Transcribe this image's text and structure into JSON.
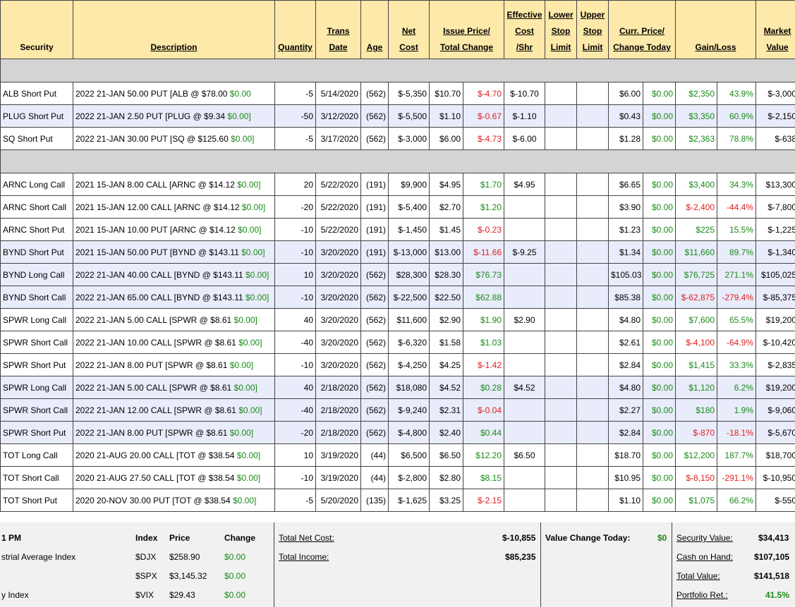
{
  "header": {
    "security": "Security",
    "description": "Description",
    "quantity": "Quantity",
    "trans_date_1": "Trans",
    "trans_date_2": "Date",
    "age": "Age",
    "net_cost_1": "Net",
    "net_cost_2": "Cost",
    "issue_1": "Issue Price/",
    "issue_2": "Total Change",
    "eff_1": "Effective",
    "eff_2": "Cost",
    "eff_3": "/Shr",
    "lower_1": "Lower",
    "lower_2": "Stop",
    "lower_3": "Limit",
    "upper_1": "Upper",
    "upper_2": "Stop",
    "upper_3": "Limit",
    "curr_1": "Curr. Price/",
    "curr_2": "Change Today",
    "gain": "Gain/Loss",
    "mkt_1": "Market",
    "mkt_2": "Value"
  },
  "groups": [
    {
      "rows": [
        {
          "security": "ALB Short Put",
          "desc": "2022 21-JAN 50.00 PUT [ALB @ $78.00 ",
          "desc_chg": "$0.00",
          "qty": "-5",
          "date": "5/14/2020",
          "age": "(562)",
          "net": "$-5,350",
          "issue": "$10.70",
          "total": "$-4.70",
          "total_c": "red",
          "eff": "$-10.70",
          "curr": "$6.00",
          "chg": "$0.00",
          "gl": "$2,350",
          "gl_c": "g",
          "pct": "43.9%",
          "pct_c": "g",
          "mkt": "$-3,000",
          "alt": false
        },
        {
          "security": "PLUG Short Put",
          "desc": "2022 21-JAN 2.50 PUT [PLUG @ $9.34 ",
          "desc_chg": "$0.00]",
          "qty": "-50",
          "date": "3/12/2020",
          "age": "(562)",
          "net": "$-5,500",
          "issue": "$1.10",
          "total": "$-0.67",
          "total_c": "red",
          "eff": "$-1.10",
          "curr": "$0.43",
          "chg": "$0.00",
          "gl": "$3,350",
          "gl_c": "g",
          "pct": "60.9%",
          "pct_c": "g",
          "mkt": "$-2,150",
          "alt": true
        },
        {
          "security": "SQ Short Put",
          "desc": "2022 21-JAN 30.00 PUT [SQ @ $125.60 ",
          "desc_chg": "$0.00]",
          "qty": "-5",
          "date": "3/17/2020",
          "age": "(562)",
          "net": "$-3,000",
          "issue": "$6.00",
          "total": "$-4.73",
          "total_c": "red",
          "eff": "$-6.00",
          "curr": "$1.28",
          "chg": "$0.00",
          "gl": "$2,363",
          "gl_c": "g",
          "pct": "78.8%",
          "pct_c": "g",
          "mkt": "$-638",
          "alt": false
        }
      ]
    },
    {
      "rows": [
        {
          "security": "ARNC Long Call",
          "desc": "2021 15-JAN 8.00 CALL [ARNC @ $14.12 ",
          "desc_chg": "$0.00]",
          "qty": "20",
          "date": "5/22/2020",
          "age": "(191)",
          "net": "$9,900",
          "issue": "$4.95",
          "total": "$1.70",
          "total_c": "g",
          "eff": "$4.95",
          "curr": "$6.65",
          "chg": "$0.00",
          "gl": "$3,400",
          "gl_c": "g",
          "pct": "34.3%",
          "pct_c": "g",
          "mkt": "$13,300",
          "alt": false
        },
        {
          "security": "ARNC Short Call",
          "desc": "2021 15-JAN 12.00 CALL [ARNC @ $14.12 ",
          "desc_chg": "$0.00]",
          "qty": "-20",
          "date": "5/22/2020",
          "age": "(191)",
          "net": "$-5,400",
          "issue": "$2.70",
          "total": "$1.20",
          "total_c": "g",
          "eff": "",
          "curr": "$3.90",
          "chg": "$0.00",
          "gl": "$-2,400",
          "gl_c": "red",
          "pct": "-44.4%",
          "pct_c": "red",
          "mkt": "$-7,800",
          "alt": false
        },
        {
          "security": "ARNC Short Put",
          "desc": "2021 15-JAN 10.00 PUT [ARNC @ $14.12 ",
          "desc_chg": "$0.00]",
          "qty": "-10",
          "date": "5/22/2020",
          "age": "(191)",
          "net": "$-1,450",
          "issue": "$1.45",
          "total": "$-0.23",
          "total_c": "red",
          "eff": "",
          "curr": "$1.23",
          "chg": "$0.00",
          "gl": "$225",
          "gl_c": "g",
          "pct": "15.5%",
          "pct_c": "g",
          "mkt": "$-1,225",
          "alt": false
        },
        {
          "security": "BYND Short Put",
          "desc": "2021 15-JAN 50.00 PUT [BYND @ $143.11 ",
          "desc_chg": "$0.00]",
          "qty": "-10",
          "date": "3/20/2020",
          "age": "(191)",
          "net": "$-13,000",
          "issue": "$13.00",
          "total": "$-11.66",
          "total_c": "red",
          "eff": "$-9.25",
          "curr": "$1.34",
          "chg": "$0.00",
          "gl": "$11,660",
          "gl_c": "g",
          "pct": "89.7%",
          "pct_c": "g",
          "mkt": "$-1,340",
          "alt": true
        },
        {
          "security": "BYND Long Call",
          "desc": "2022 21-JAN 40.00 CALL [BYND @ $143.11 ",
          "desc_chg": "$0.00]",
          "qty": "10",
          "date": "3/20/2020",
          "age": "(562)",
          "net": "$28,300",
          "issue": "$28.30",
          "total": "$76.73",
          "total_c": "g",
          "eff": "",
          "curr": "$105.03",
          "chg": "$0.00",
          "gl": "$76,725",
          "gl_c": "g",
          "pct": "271.1%",
          "pct_c": "g",
          "mkt": "$105,025",
          "alt": true
        },
        {
          "security": "BYND Short Call",
          "desc": "2022 21-JAN 65.00 CALL [BYND @ $143.11 ",
          "desc_chg": "$0.00]",
          "qty": "-10",
          "date": "3/20/2020",
          "age": "(562)",
          "net": "$-22,500",
          "issue": "$22.50",
          "total": "$62.88",
          "total_c": "g",
          "eff": "",
          "curr": "$85.38",
          "chg": "$0.00",
          "gl": "$-62,875",
          "gl_c": "red",
          "pct": "-279.4%",
          "pct_c": "red",
          "mkt": "$-85,375",
          "alt": true
        },
        {
          "security": "SPWR Long Call",
          "desc": "2022 21-JAN 5.00 CALL [SPWR @ $8.61 ",
          "desc_chg": "$0.00]",
          "qty": "40",
          "date": "3/20/2020",
          "age": "(562)",
          "net": "$11,600",
          "issue": "$2.90",
          "total": "$1.90",
          "total_c": "g",
          "eff": "$2.90",
          "curr": "$4.80",
          "chg": "$0.00",
          "gl": "$7,600",
          "gl_c": "g",
          "pct": "65.5%",
          "pct_c": "g",
          "mkt": "$19,200",
          "alt": false
        },
        {
          "security": "SPWR Short Call",
          "desc": "2022 21-JAN 10.00 CALL [SPWR @ $8.61 ",
          "desc_chg": "$0.00]",
          "qty": "-40",
          "date": "3/20/2020",
          "age": "(562)",
          "net": "$-6,320",
          "issue": "$1.58",
          "total": "$1.03",
          "total_c": "g",
          "eff": "",
          "curr": "$2.61",
          "chg": "$0.00",
          "gl": "$-4,100",
          "gl_c": "red",
          "pct": "-64.9%",
          "pct_c": "red",
          "mkt": "$-10,420",
          "alt": false
        },
        {
          "security": "SPWR Short Put",
          "desc": "2022 21-JAN 8.00 PUT [SPWR @ $8.61 ",
          "desc_chg": "$0.00]",
          "qty": "-10",
          "date": "3/20/2020",
          "age": "(562)",
          "net": "$-4,250",
          "issue": "$4.25",
          "total": "$-1.42",
          "total_c": "red",
          "eff": "",
          "curr": "$2.84",
          "chg": "$0.00",
          "gl": "$1,415",
          "gl_c": "g",
          "pct": "33.3%",
          "pct_c": "g",
          "mkt": "$-2,835",
          "alt": false
        },
        {
          "security": "SPWR Long Call",
          "desc": "2022 21-JAN 5.00 CALL [SPWR @ $8.61 ",
          "desc_chg": "$0.00]",
          "qty": "40",
          "date": "2/18/2020",
          "age": "(562)",
          "net": "$18,080",
          "issue": "$4.52",
          "total": "$0.28",
          "total_c": "g",
          "eff": "$4.52",
          "curr": "$4.80",
          "chg": "$0.00",
          "gl": "$1,120",
          "gl_c": "g",
          "pct": "6.2%",
          "pct_c": "g",
          "mkt": "$19,200",
          "alt": true
        },
        {
          "security": "SPWR Short Call",
          "desc": "2022 21-JAN 12.00 CALL [SPWR @ $8.61 ",
          "desc_chg": "$0.00]",
          "qty": "-40",
          "date": "2/18/2020",
          "age": "(562)",
          "net": "$-9,240",
          "issue": "$2.31",
          "total": "$-0.04",
          "total_c": "red",
          "eff": "",
          "curr": "$2.27",
          "chg": "$0.00",
          "gl": "$180",
          "gl_c": "g",
          "pct": "1.9%",
          "pct_c": "g",
          "mkt": "$-9,060",
          "alt": true
        },
        {
          "security": "SPWR Short Put",
          "desc": "2022 21-JAN 8.00 PUT [SPWR @ $8.61 ",
          "desc_chg": "$0.00]",
          "qty": "-20",
          "date": "2/18/2020",
          "age": "(562)",
          "net": "$-4,800",
          "issue": "$2.40",
          "total": "$0.44",
          "total_c": "g",
          "eff": "",
          "curr": "$2.84",
          "chg": "$0.00",
          "gl": "$-870",
          "gl_c": "red",
          "pct": "-18.1%",
          "pct_c": "red",
          "mkt": "$-5,670",
          "alt": true
        },
        {
          "security": "TOT Long Call",
          "desc": "2020 21-AUG 20.00 CALL [TOT @ $38.54 ",
          "desc_chg": "$0.00]",
          "qty": "10",
          "date": "3/19/2020",
          "age": "(44)",
          "net": "$6,500",
          "issue": "$6.50",
          "total": "$12.20",
          "total_c": "g",
          "eff": "$6.50",
          "curr": "$18.70",
          "chg": "$0.00",
          "gl": "$12,200",
          "gl_c": "g",
          "pct": "187.7%",
          "pct_c": "g",
          "mkt": "$18,700",
          "alt": false
        },
        {
          "security": "TOT Short Call",
          "desc": "2020 21-AUG 27.50 CALL [TOT @ $38.54 ",
          "desc_chg": "$0.00]",
          "qty": "-10",
          "date": "3/19/2020",
          "age": "(44)",
          "net": "$-2,800",
          "issue": "$2.80",
          "total": "$8.15",
          "total_c": "g",
          "eff": "",
          "curr": "$10.95",
          "chg": "$0.00",
          "gl": "$-8,150",
          "gl_c": "red",
          "pct": "-291.1%",
          "pct_c": "red",
          "mkt": "$-10,950",
          "alt": false
        },
        {
          "security": "TOT Short Put",
          "desc": "2020 20-NOV 30.00 PUT [TOT @ $38.54 ",
          "desc_chg": "$0.00]",
          "qty": "-5",
          "date": "5/20/2020",
          "age": "(135)",
          "net": "$-1,625",
          "issue": "$3.25",
          "total": "$-2.15",
          "total_c": "red",
          "eff": "",
          "curr": "$1.10",
          "chg": "$0.00",
          "gl": "$1,075",
          "gl_c": "g",
          "pct": "66.2%",
          "pct_c": "g",
          "mkt": "$-550",
          "alt": false
        }
      ]
    }
  ],
  "footer": {
    "time": "1 PM",
    "col_index": "Index",
    "col_price": "Price",
    "col_change": "Change",
    "indices": [
      {
        "name": "strial Average Index",
        "sym": "$DJX",
        "price": "$258.90",
        "change": "$0.00"
      },
      {
        "name": "",
        "sym": "$SPX",
        "price": "$3,145.32",
        "change": "$0.00"
      },
      {
        "name": "y Index",
        "sym": "$VIX",
        "price": "$29.43",
        "change": "$0.00"
      }
    ],
    "total_net_cost_label": "Total Net Cost:",
    "total_net_cost": "$-10,855",
    "total_income_label": "Total Income:",
    "total_income": "$85,235",
    "value_change_label": "Value Change Today:",
    "value_change": "$0",
    "security_value_label": "Security Value:",
    "security_value": "$34,413",
    "cash_label": "Cash on Hand:",
    "cash": "$107,105",
    "total_value_label": "Total Value:",
    "total_value": "$141,518",
    "portfolio_ret_label": "Portfolio Ret.:",
    "portfolio_ret": "41.5%"
  },
  "colors": {
    "header_bg": "#fde9a9",
    "alt_row": "#e9ecfb",
    "separator": "#d4d4d4",
    "positive": "#1a8a1a",
    "negative": "#e02020"
  }
}
